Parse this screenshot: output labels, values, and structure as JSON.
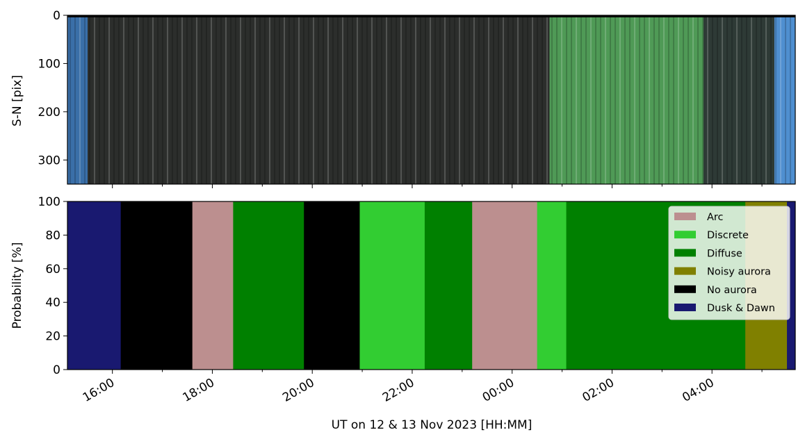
{
  "chart_data": [
    {
      "type": "heatmap",
      "kind": "keogram image",
      "ylabel": "S-N [pix]",
      "ylim": [
        0,
        350
      ],
      "y_inverted": true,
      "yticks": [
        0,
        100,
        200,
        300
      ],
      "xlim": [
        "2023-11-12T15:06",
        "2023-11-13T05:40"
      ],
      "bands": [
        {
          "from": "2023-11-12T15:06",
          "to": "2023-11-12T15:30",
          "color": "#3a6fa8",
          "label": "dusk twilight"
        },
        {
          "from": "2023-11-12T15:30",
          "to": "2023-11-13T00:45",
          "color": "#2c2e2c",
          "label": "dark sky, faint aurora"
        },
        {
          "from": "2023-11-13T00:45",
          "to": "2023-11-13T03:50",
          "color": "#4f9a56",
          "label": "bright green aurora"
        },
        {
          "from": "2023-11-13T03:50",
          "to": "2023-11-13T05:15",
          "color": "#2e3a36",
          "label": "dark sky"
        },
        {
          "from": "2023-11-13T05:15",
          "to": "2023-11-13T05:40",
          "color": "#4f8fd0",
          "label": "dawn twilight"
        }
      ]
    },
    {
      "type": "area",
      "stacked": true,
      "ylabel": "Probability [%]",
      "xlabel": "UT on 12 & 13 Nov 2023 [HH:MM]",
      "ylim": [
        0,
        100
      ],
      "yticks": [
        0,
        20,
        40,
        60,
        80,
        100
      ],
      "xlim": [
        "2023-11-12T15:06",
        "2023-11-13T05:40"
      ],
      "xticks": [
        "16:00",
        "18:00",
        "20:00",
        "22:00",
        "00:00",
        "02:00",
        "04:00"
      ],
      "legend_position": "upper right",
      "series": [
        {
          "name": "Arc",
          "color": "#bc8f8f"
        },
        {
          "name": "Discrete",
          "color": "#32cd32"
        },
        {
          "name": "Diffuse",
          "color": "#008000"
        },
        {
          "name": "Noisy aurora",
          "color": "#808000"
        },
        {
          "name": "No aurora",
          "color": "#000000"
        },
        {
          "name": "Dusk & Dawn",
          "color": "#191970"
        }
      ],
      "dominant_class_segments": [
        {
          "from": "2023-11-12T15:06",
          "to": "2023-11-12T16:10",
          "class": "Dusk & Dawn"
        },
        {
          "from": "2023-11-12T16:10",
          "to": "2023-11-12T17:36",
          "class": "No aurora"
        },
        {
          "from": "2023-11-12T17:36",
          "to": "2023-11-12T18:25",
          "class": "Arc"
        },
        {
          "from": "2023-11-12T18:25",
          "to": "2023-11-12T19:50",
          "class": "Diffuse"
        },
        {
          "from": "2023-11-12T19:50",
          "to": "2023-11-12T20:57",
          "class": "No aurora"
        },
        {
          "from": "2023-11-12T20:57",
          "to": "2023-11-12T22:15",
          "class": "Discrete"
        },
        {
          "from": "2023-11-12T22:15",
          "to": "2023-11-12T23:12",
          "class": "Diffuse"
        },
        {
          "from": "2023-11-12T23:12",
          "to": "2023-11-13T00:30",
          "class": "Arc"
        },
        {
          "from": "2023-11-13T00:30",
          "to": "2023-11-13T01:05",
          "class": "Discrete"
        },
        {
          "from": "2023-11-13T01:05",
          "to": "2023-11-13T04:40",
          "class": "Diffuse"
        },
        {
          "from": "2023-11-13T04:40",
          "to": "2023-11-13T05:30",
          "class": "Noisy aurora"
        },
        {
          "from": "2023-11-13T05:30",
          "to": "2023-11-13T05:40",
          "class": "Dusk & Dawn"
        }
      ]
    }
  ]
}
